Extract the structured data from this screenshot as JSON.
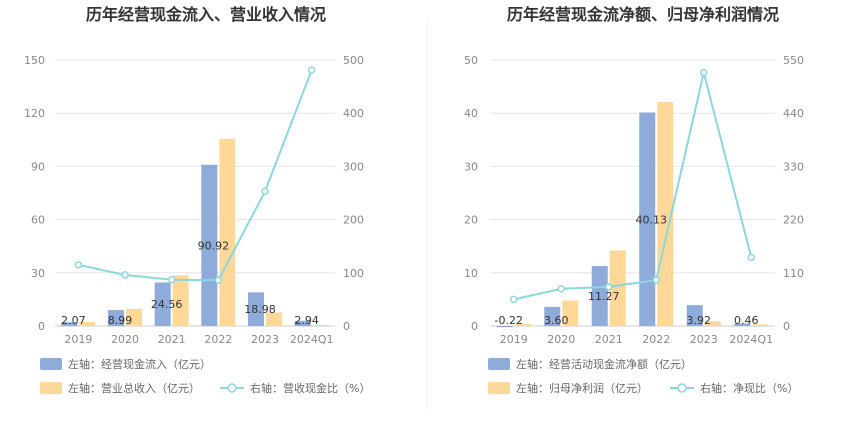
{
  "chart_data": [
    {
      "type": "bar",
      "title": "历年经营现金流入、营业收入情况",
      "categories": [
        "2019",
        "2020",
        "2021",
        "2022",
        "2023",
        "2024Q1"
      ],
      "left_axis": {
        "ticks": [
          "0",
          "30",
          "60",
          "90",
          "120",
          "150"
        ],
        "ylim": [
          0,
          150
        ]
      },
      "right_axis": {
        "ticks": [
          "0",
          "100",
          "200",
          "300",
          "400",
          "500"
        ],
        "ylim": [
          0,
          500
        ]
      },
      "series": [
        {
          "name": "左轴：经营现金流入（亿元）",
          "type": "bar",
          "axis": "left",
          "color": "#8eabd9",
          "values": [
            2.07,
            8.99,
            24.56,
            90.92,
            18.98,
            2.94
          ],
          "labels": [
            "2.07",
            "8.99",
            "24.56",
            "90.92",
            "18.98",
            "2.94"
          ]
        },
        {
          "name": "左轴：营业总收入（亿元）",
          "type": "bar",
          "axis": "left",
          "color": "#ffd899",
          "values": [
            2.3,
            9.6,
            28.6,
            105.5,
            7.6,
            0.6
          ]
        },
        {
          "name": "右轴：营收现金比（%）",
          "type": "line",
          "axis": "right",
          "color": "#8ad8de",
          "values": [
            115,
            96,
            87,
            86,
            253,
            481
          ]
        }
      ]
    },
    {
      "type": "bar",
      "title": "历年经营现金流净额、归母净利润情况",
      "categories": [
        "2019",
        "2020",
        "2021",
        "2022",
        "2023",
        "2024Q1"
      ],
      "left_axis": {
        "ticks": [
          "0",
          "10",
          "20",
          "30",
          "40",
          "50"
        ],
        "ylim": [
          0,
          50
        ]
      },
      "right_axis": {
        "ticks": [
          "0",
          "110",
          "220",
          "330",
          "440",
          "550"
        ],
        "ylim": [
          0,
          550
        ]
      },
      "series": [
        {
          "name": "左轴：经营活动现金流净额（亿元）",
          "type": "bar",
          "axis": "left",
          "color": "#8eabd9",
          "values": [
            -0.22,
            3.6,
            11.27,
            40.13,
            3.92,
            0.46
          ],
          "labels": [
            "-0.22",
            "3.60",
            "11.27",
            "40.13",
            "3.92",
            "0.46"
          ]
        },
        {
          "name": "左轴：归母净利润（亿元）",
          "type": "bar",
          "axis": "left",
          "color": "#ffd899",
          "values": [
            0.4,
            4.8,
            14.2,
            42.1,
            0.9,
            0.3
          ]
        },
        {
          "name": "右轴：净现比（%）",
          "type": "line",
          "axis": "right",
          "color": "#8ad8de",
          "values": [
            55,
            77,
            81,
            95,
            524,
            142
          ]
        }
      ]
    }
  ]
}
